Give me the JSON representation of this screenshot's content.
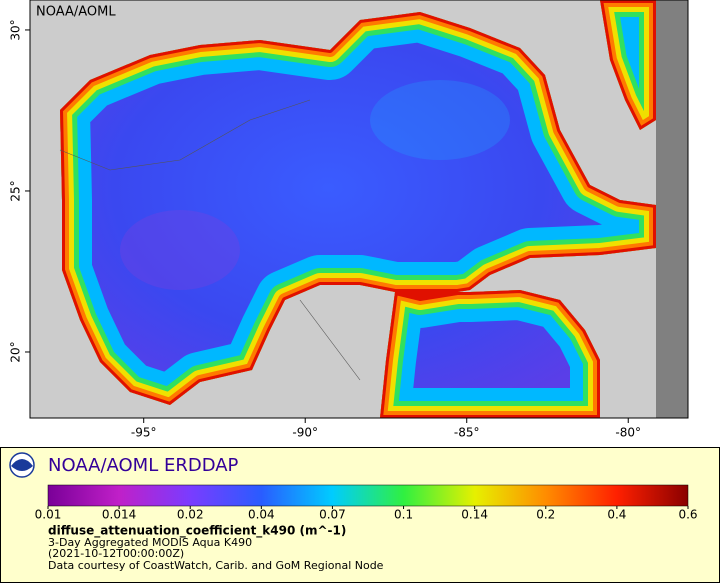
{
  "map": {
    "label": "NOAA/AOML",
    "xlim": [
      -98.52,
      -78.15
    ],
    "ylim": [
      17.95,
      30.93
    ],
    "xticks": [
      {
        "value": -95,
        "label": "-95°"
      },
      {
        "value": -90,
        "label": "-90°"
      },
      {
        "value": -85,
        "label": "-85°"
      },
      {
        "value": -80,
        "label": "-80°"
      }
    ],
    "yticks": [
      {
        "value": 20,
        "label": "20°"
      },
      {
        "value": 25,
        "label": "25°"
      },
      {
        "value": 30,
        "label": "30°"
      }
    ]
  },
  "legend": {
    "title": "NOAA/AOML ERDDAP",
    "colorbar": {
      "ticks": [
        0.01,
        0.014,
        0.02,
        0.04,
        0.07,
        0.1,
        0.14,
        0.2,
        0.4,
        0.6
      ]
    },
    "variable": "diffuse_attenuation_coefficient_k490 (m^-1)",
    "lines": [
      "3-Day Aggregated MODIS Aqua K490",
      "(2021-10-12T00:00:00Z)",
      "Data courtesy of CoastWatch, Carib. and GoM Regional Node"
    ]
  }
}
